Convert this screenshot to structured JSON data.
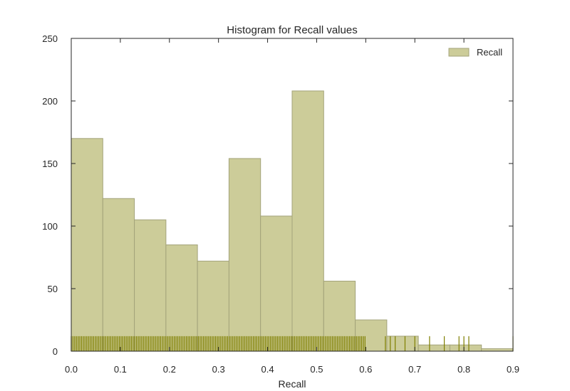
{
  "chart_data": {
    "type": "bar",
    "title": "Histogram for Recall values",
    "xlabel": "Recall",
    "ylabel": "",
    "xlim": [
      0.0,
      0.9
    ],
    "ylim": [
      0,
      250
    ],
    "xticks": [
      "0.0",
      "0.1",
      "0.2",
      "0.3",
      "0.4",
      "0.5",
      "0.6",
      "0.7",
      "0.8",
      "0.9"
    ],
    "yticks": [
      "0",
      "50",
      "100",
      "150",
      "200",
      "250"
    ],
    "grid": false,
    "legend": {
      "position": "top-right",
      "entries": [
        "Recall"
      ]
    },
    "series": [
      {
        "name": "Recall",
        "bin_edges": [
          0.0,
          0.0643,
          0.1286,
          0.1929,
          0.2571,
          0.3214,
          0.3857,
          0.45,
          0.5143,
          0.5786,
          0.6429,
          0.7071,
          0.7714,
          0.8357,
          0.9
        ],
        "counts": [
          170,
          122,
          105,
          85,
          72,
          154,
          108,
          208,
          56,
          25,
          12,
          5,
          5,
          2
        ]
      }
    ],
    "rug": {
      "height": 12,
      "sample_values": [
        0.0,
        0.9,
        0.64,
        0.65,
        0.66,
        0.68,
        0.7,
        0.73,
        0.76,
        0.79,
        0.8,
        0.81
      ]
    },
    "colors": {
      "bar_fill": "#cccc99",
      "bar_edge": "#a3a37a",
      "rug": "#7f7f00"
    }
  }
}
